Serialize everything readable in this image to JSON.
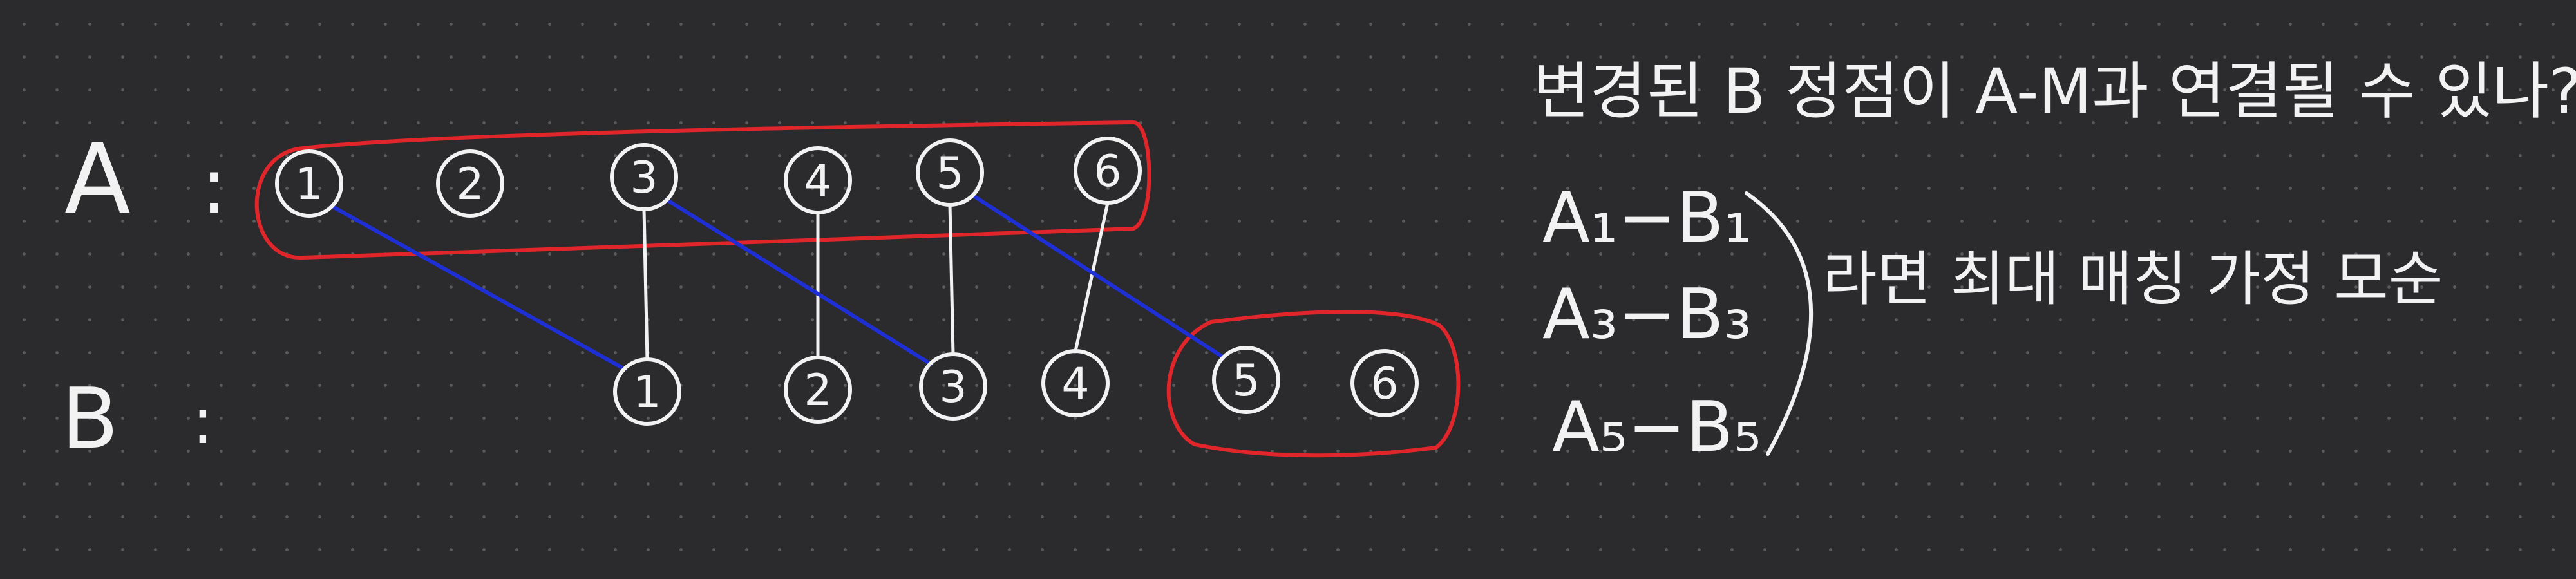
{
  "labels": {
    "a": "A",
    "b": "B",
    "colon": ":"
  },
  "a_nodes": [
    "1",
    "2",
    "3",
    "4",
    "5",
    "6"
  ],
  "b_nodes": [
    "1",
    "2",
    "3",
    "4",
    "5",
    "6"
  ],
  "matched_pairs": [
    {
      "a": "1",
      "b": "1"
    },
    {
      "a": "3",
      "b": "3"
    },
    {
      "a": "5",
      "b": "5"
    }
  ],
  "vertical_pairs": [
    {
      "a": "3",
      "b": "1"
    },
    {
      "a": "4",
      "b": "2"
    },
    {
      "a": "5",
      "b": "3"
    },
    {
      "a": "6",
      "b": "4"
    }
  ],
  "notes": {
    "question": "변경된 B 정점이 A-M과 연결될 수 있나?",
    "pairs": [
      "A₁−B₁",
      "A₃−B₃",
      "A₅−B₅"
    ],
    "conclusion": "라면 최대 매칭 가정 모순"
  },
  "colors": {
    "background": "#2b2b2d",
    "ink": "#f2f2f2",
    "red": "#e0262a",
    "blue": "#1f2fd6"
  }
}
